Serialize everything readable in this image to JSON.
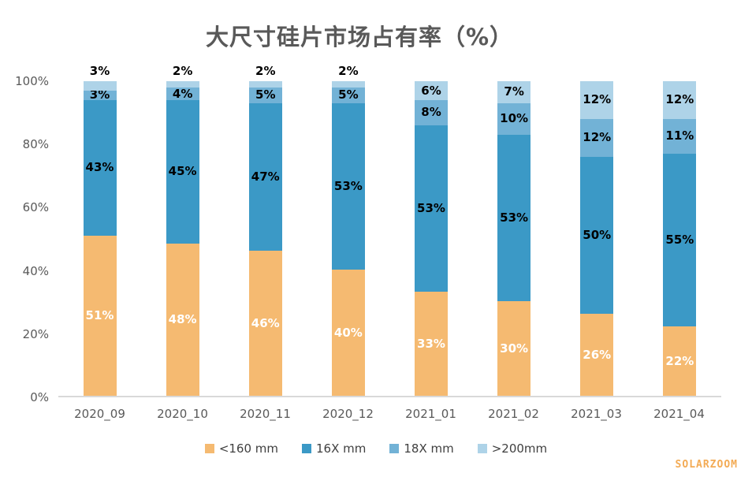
{
  "title": "大尺寸硅片市场占有率（%）",
  "watermark": "SOLARZOOM",
  "colors": {
    "lt160": "#F5BA71",
    "s16x": "#3B99C6",
    "s18x": "#72B2D6",
    "gt200": "#AED3E8",
    "title_text": "#595959",
    "axis_text": "#595959",
    "legend_text": "#404040",
    "baseline": "#D9D9D9",
    "watermark_text": "#F3AB55",
    "label_on_orange": "#FFFFFF",
    "label_on_blue": "#000000"
  },
  "chart_data": {
    "type": "bar",
    "stacked": true,
    "percent_stacked": true,
    "grid": false,
    "legend_position": "bottom",
    "title": "大尺寸硅片市场占有率（%）",
    "xlabel": "",
    "ylabel": "",
    "ylim": [
      0,
      100
    ],
    "categories": [
      "2020_09",
      "2020_10",
      "2020_11",
      "2020_12",
      "2021_01",
      "2021_02",
      "2021_03",
      "2021_04"
    ],
    "series": [
      {
        "name": "<160 mm",
        "color_key": "lt160",
        "label_color": "#FFFFFF",
        "values": [
          51,
          48,
          46,
          40,
          33,
          30,
          26,
          22
        ]
      },
      {
        "name": "16X mm",
        "color_key": "s16x",
        "label_color": "#000000",
        "values": [
          43,
          45,
          47,
          53,
          53,
          53,
          50,
          55
        ]
      },
      {
        "name": "18X mm",
        "color_key": "s18x",
        "label_color": "#000000",
        "values": [
          3,
          4,
          5,
          5,
          8,
          10,
          12,
          11
        ]
      },
      {
        "name": ">200mm",
        "color_key": "gt200",
        "label_color": "#000000",
        "values": [
          3,
          2,
          2,
          2,
          6,
          7,
          12,
          12
        ]
      }
    ],
    "yticks": [
      {
        "label": "100%",
        "value": 100
      },
      {
        "label": "80%",
        "value": 80
      },
      {
        "label": "60%",
        "value": 60
      },
      {
        "label": "40%",
        "value": 40
      },
      {
        "label": "20%",
        "value": 20
      },
      {
        "label": "0%",
        "value": 0
      }
    ]
  }
}
